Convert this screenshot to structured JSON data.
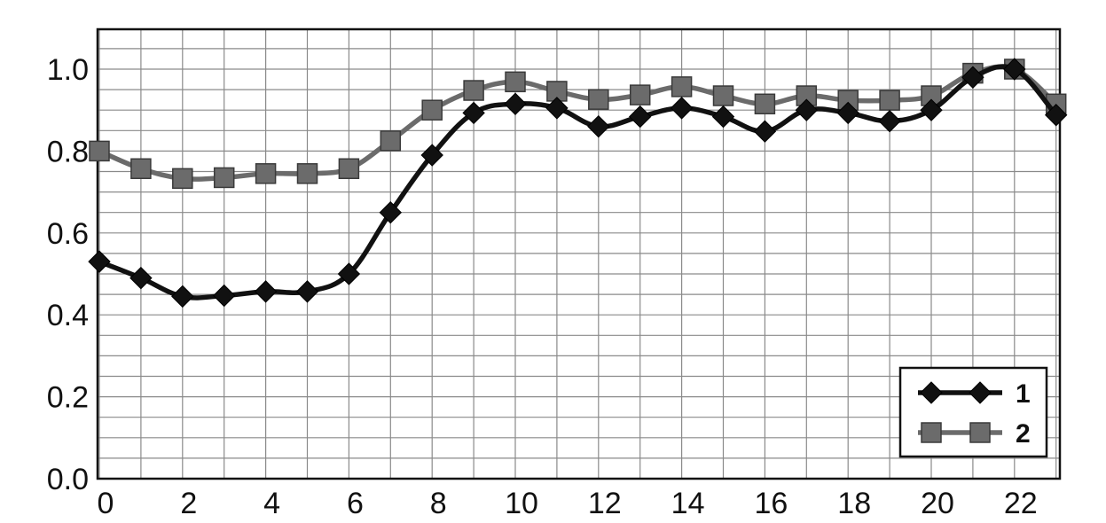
{
  "chart_data": {
    "type": "line",
    "title": "",
    "xlabel": "",
    "ylabel": "",
    "x": [
      0,
      1,
      2,
      3,
      4,
      5,
      6,
      7,
      8,
      9,
      10,
      11,
      12,
      13,
      14,
      15,
      16,
      17,
      18,
      19,
      20,
      21,
      22,
      23
    ],
    "xlim": [
      0,
      23
    ],
    "ylim": [
      0,
      1.1
    ],
    "xticks": [
      "0",
      "2",
      "4",
      "6",
      "8",
      "10",
      "12",
      "14",
      "16",
      "18",
      "20",
      "22"
    ],
    "yticks": [
      "0.0",
      "0.2",
      "0.4",
      "0.6",
      "0.8",
      "1.0"
    ],
    "grid": true,
    "legend_position": "bottom-right",
    "series": [
      {
        "name": "1",
        "marker": "diamond",
        "color": "#111111",
        "values": [
          0.53,
          0.49,
          0.445,
          0.447,
          0.457,
          0.457,
          0.5,
          0.65,
          0.79,
          0.893,
          0.915,
          0.905,
          0.86,
          0.884,
          0.905,
          0.884,
          0.848,
          0.9,
          0.893,
          0.873,
          0.9,
          0.98,
          1.0,
          0.888
        ]
      },
      {
        "name": "2",
        "marker": "square",
        "color": "#6b6b6b",
        "values": [
          0.8,
          0.757,
          0.733,
          0.735,
          0.745,
          0.745,
          0.757,
          0.825,
          0.9,
          0.948,
          0.969,
          0.946,
          0.926,
          0.937,
          0.957,
          0.935,
          0.915,
          0.935,
          0.924,
          0.924,
          0.935,
          0.99,
          1.0,
          0.915
        ]
      }
    ]
  }
}
